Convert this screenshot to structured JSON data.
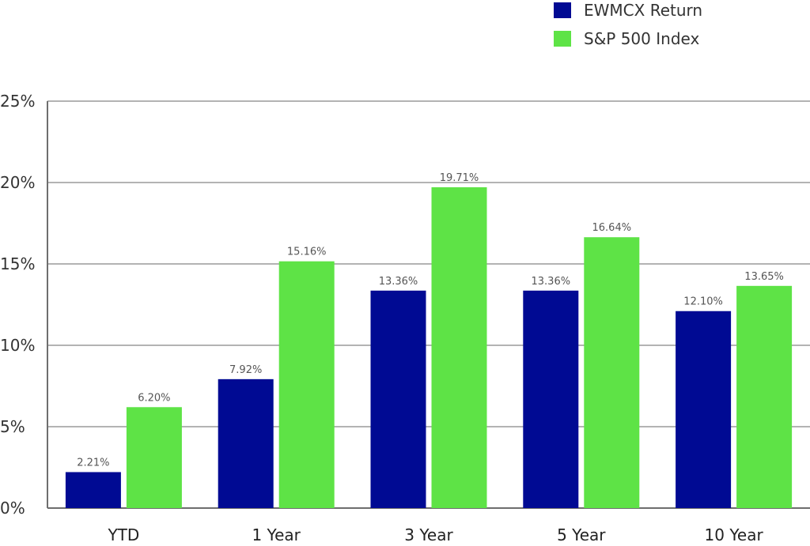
{
  "chart_data": {
    "type": "bar",
    "categories": [
      "YTD",
      "1 Year",
      "3 Year",
      "5 Year",
      "10 Year"
    ],
    "series": [
      {
        "name": "EWMCX Return",
        "color": "#000a93",
        "values": [
          2.21,
          7.92,
          13.36,
          13.36,
          12.1
        ],
        "labels": [
          "2.21%",
          "7.92%",
          "13.36%",
          "13.36%",
          "12.10%"
        ]
      },
      {
        "name": "S&P 500 Index",
        "color": "#5ee346",
        "values": [
          6.2,
          15.16,
          19.71,
          16.64,
          13.65
        ],
        "labels": [
          "6.20%",
          "15.16%",
          "19.71%",
          "16.64%",
          "13.65%"
        ]
      }
    ],
    "ylim": [
      0,
      25
    ],
    "yticks": [
      0,
      5,
      10,
      15,
      20,
      25
    ],
    "ytick_labels": [
      "0%",
      "5%",
      "10%",
      "15%",
      "20%",
      "25%"
    ],
    "grid": true,
    "legend_position": "top-right",
    "colors": {
      "grid": "#9a9a9a",
      "axis": "#6e6e6e"
    }
  }
}
